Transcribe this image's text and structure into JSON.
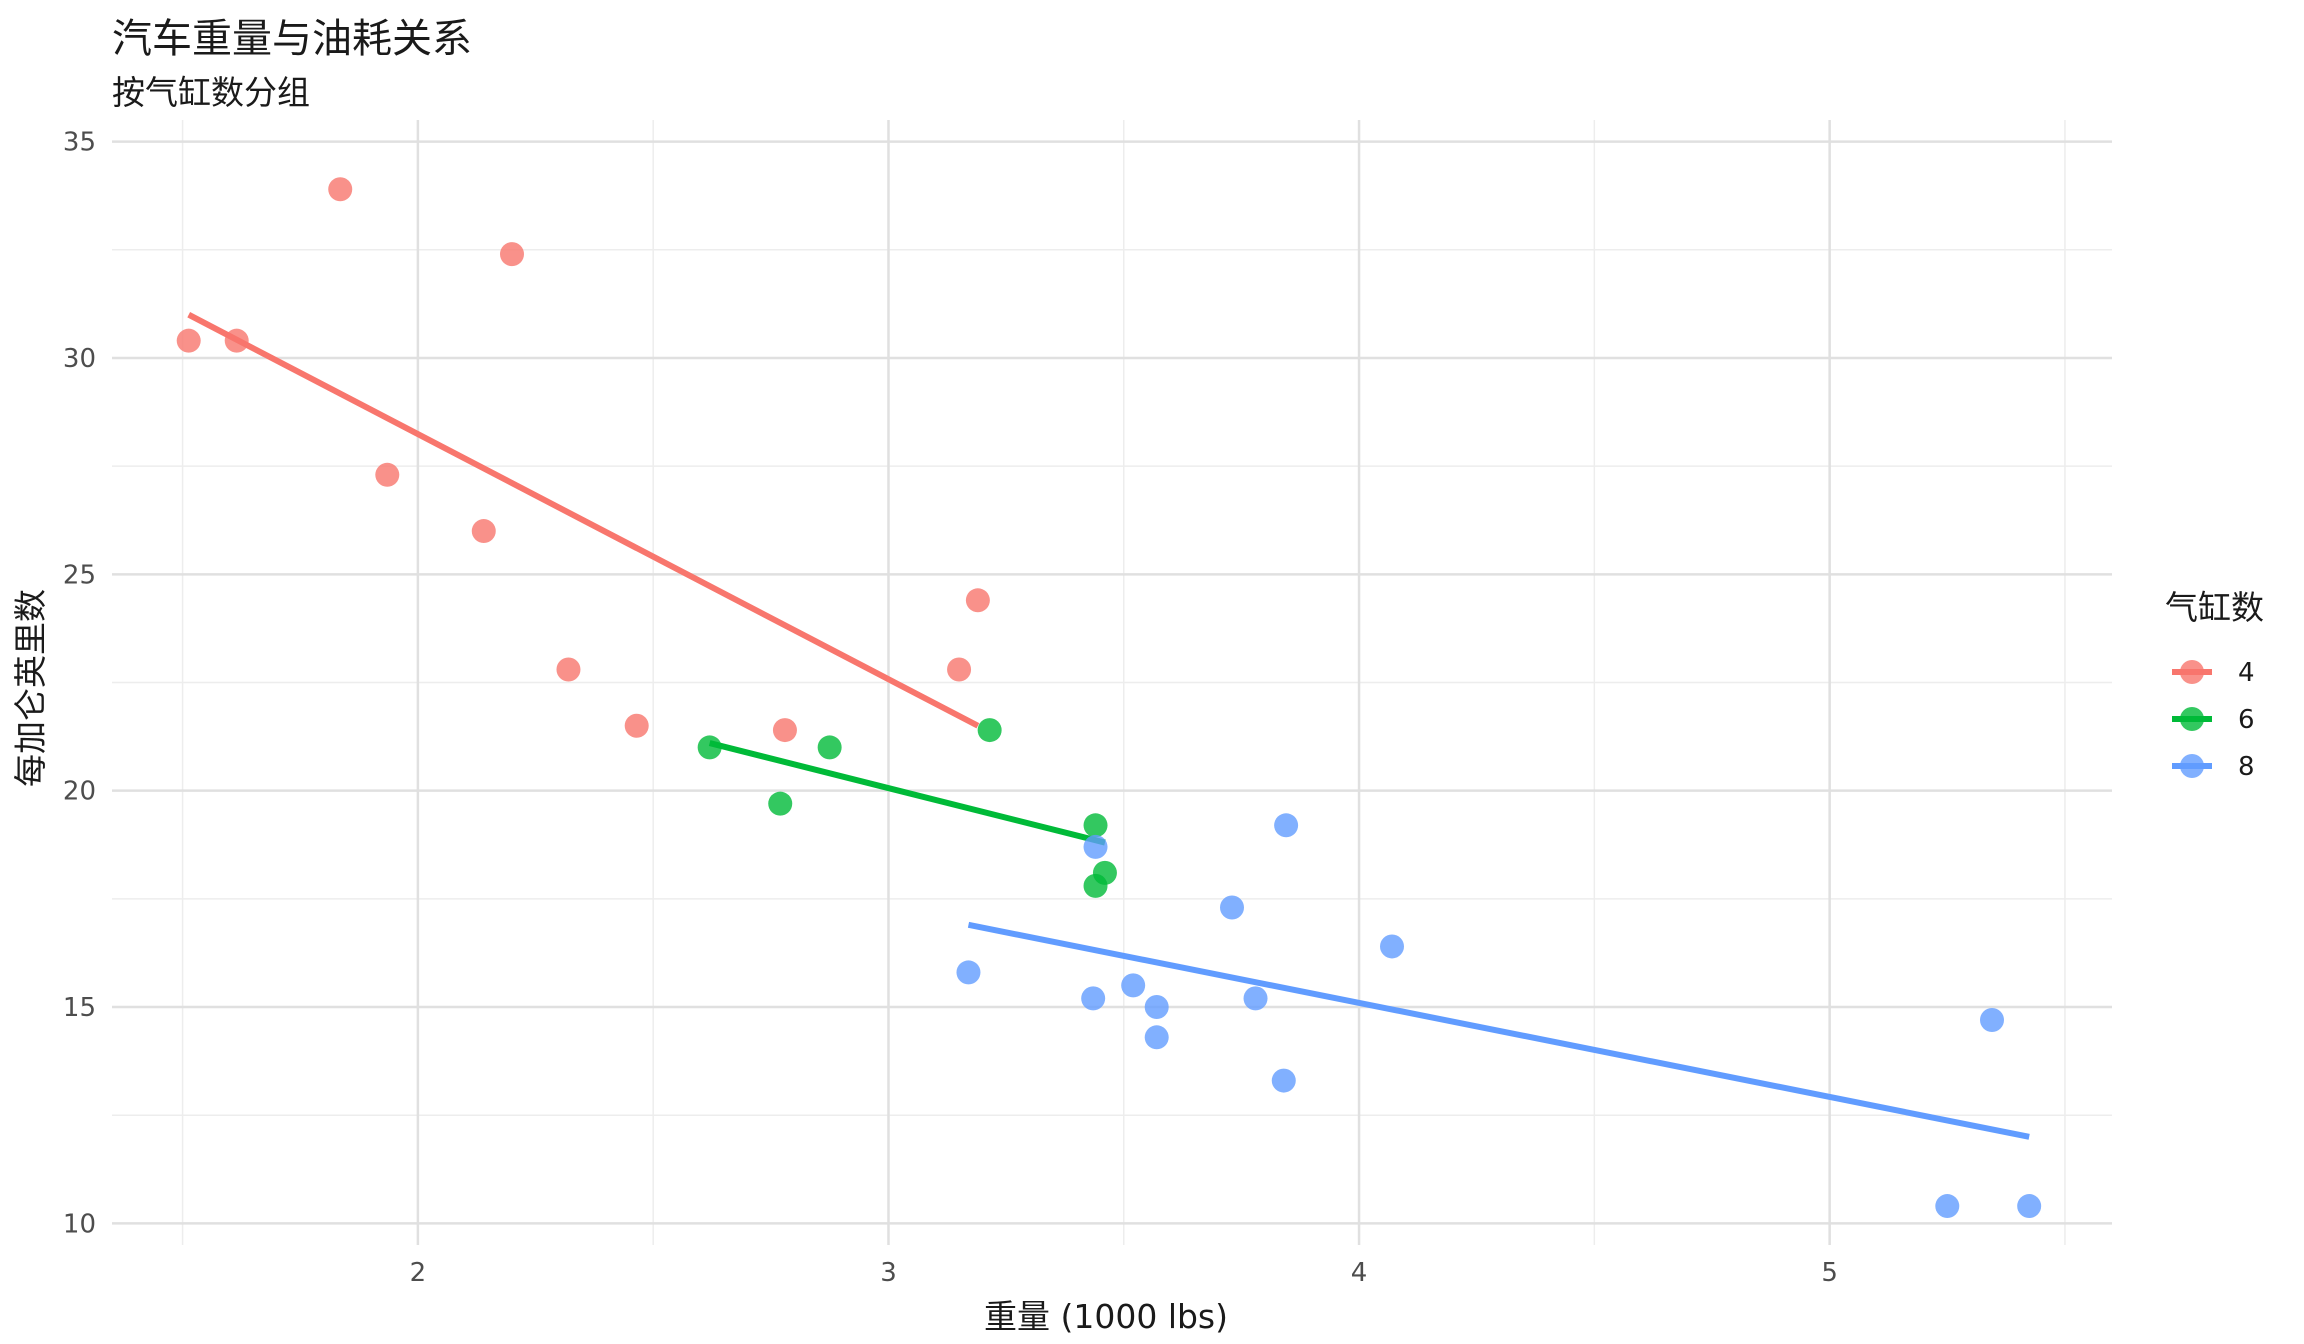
{
  "chart_data": {
    "type": "scatter",
    "title": "汽车重量与油耗关系",
    "subtitle": "按气缸数分组",
    "xlabel": "重量 (1000 lbs)",
    "ylabel": "每加仑英里数",
    "xlim": [
      1.35,
      5.6
    ],
    "ylim": [
      9.5,
      35.5
    ],
    "xticks": [
      2,
      3,
      4,
      5
    ],
    "xtick_labels": [
      "2",
      "3",
      "4",
      "5"
    ],
    "yticks": [
      10,
      15,
      20,
      25,
      30,
      35
    ],
    "ytick_labels": [
      "10",
      "15",
      "20",
      "25",
      "30",
      "35"
    ],
    "grid": true,
    "legend": {
      "title": "气缸数",
      "position": "right"
    },
    "series": [
      {
        "name": "4",
        "color": "#F8766D",
        "x": [
          2.32,
          3.19,
          3.15,
          2.2,
          1.615,
          1.835,
          2.465,
          1.935,
          2.14,
          1.513,
          2.78
        ],
        "y": [
          22.8,
          24.4,
          22.8,
          32.4,
          30.4,
          33.9,
          21.5,
          27.3,
          26.0,
          30.4,
          21.4
        ],
        "fit": {
          "x": [
            1.513,
            3.19
          ],
          "y": [
            31.0,
            21.5
          ]
        }
      },
      {
        "name": "6",
        "color": "#00BA38",
        "x": [
          2.62,
          2.875,
          3.215,
          3.46,
          3.44,
          3.44,
          2.77
        ],
        "y": [
          21.0,
          21.0,
          21.4,
          18.1,
          19.2,
          17.8,
          19.7
        ],
        "fit": {
          "x": [
            2.62,
            3.46
          ],
          "y": [
            21.1,
            18.8
          ]
        }
      },
      {
        "name": "8",
        "color": "#619CFF",
        "x": [
          3.44,
          3.57,
          4.07,
          3.73,
          3.78,
          5.25,
          5.424,
          5.345,
          3.52,
          3.435,
          3.84,
          3.845,
          3.17,
          3.57
        ],
        "y": [
          18.7,
          14.3,
          16.4,
          17.3,
          15.2,
          10.4,
          10.4,
          14.7,
          15.5,
          15.2,
          13.3,
          19.2,
          15.8,
          15.0
        ],
        "fit": {
          "x": [
            3.17,
            5.424
          ],
          "y": [
            16.9,
            12.0
          ]
        }
      }
    ]
  }
}
